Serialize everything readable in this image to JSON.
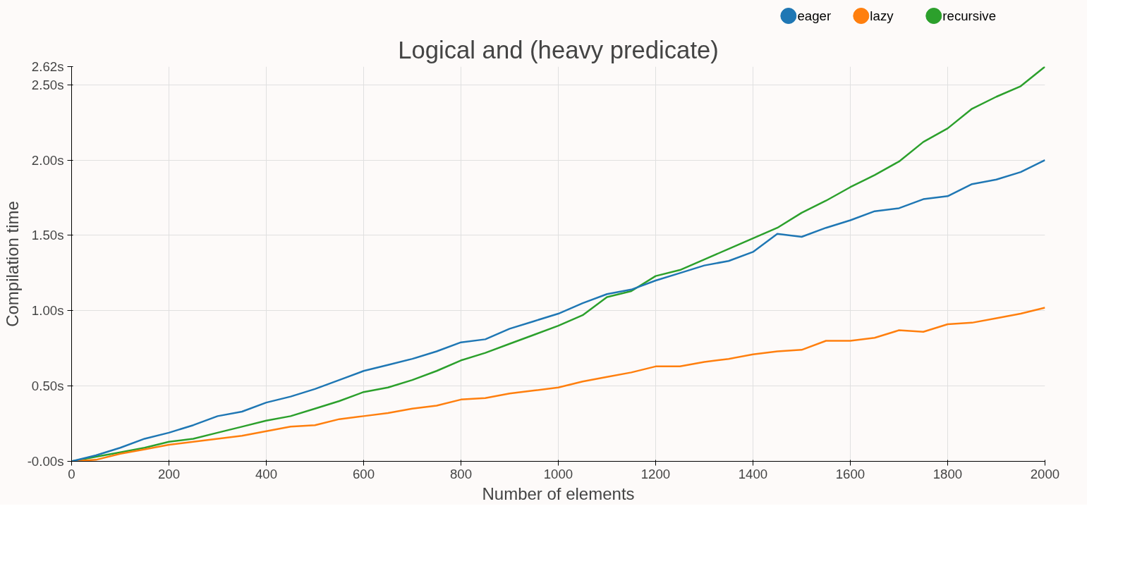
{
  "chart_data": {
    "type": "line",
    "title": "Logical and (heavy predicate)",
    "xlabel": "Number of elements",
    "ylabel": "Compilation time",
    "x": [
      0,
      50,
      100,
      150,
      200,
      250,
      300,
      350,
      400,
      450,
      500,
      550,
      600,
      650,
      700,
      750,
      800,
      850,
      900,
      950,
      1000,
      1050,
      1100,
      1150,
      1200,
      1250,
      1300,
      1350,
      1400,
      1450,
      1500,
      1550,
      1600,
      1650,
      1700,
      1750,
      1800,
      1850,
      1900,
      1950,
      2000
    ],
    "series": [
      {
        "name": "eager",
        "color": "#1f77b4",
        "values": [
          0,
          0.04,
          0.09,
          0.15,
          0.19,
          0.24,
          0.3,
          0.33,
          0.39,
          0.43,
          0.48,
          0.54,
          0.6,
          0.64,
          0.68,
          0.73,
          0.79,
          0.81,
          0.88,
          0.93,
          0.98,
          1.05,
          1.11,
          1.14,
          1.2,
          1.25,
          1.3,
          1.33,
          1.39,
          1.51,
          1.49,
          1.55,
          1.6,
          1.66,
          1.68,
          1.74,
          1.76,
          1.84,
          1.87,
          1.92,
          2.0
        ]
      },
      {
        "name": "lazy",
        "color": "#ff7f0e",
        "values": [
          0,
          0.01,
          0.05,
          0.08,
          0.11,
          0.13,
          0.15,
          0.17,
          0.2,
          0.23,
          0.24,
          0.28,
          0.3,
          0.32,
          0.35,
          0.37,
          0.41,
          0.42,
          0.45,
          0.47,
          0.49,
          0.53,
          0.56,
          0.59,
          0.63,
          0.63,
          0.66,
          0.68,
          0.71,
          0.73,
          0.74,
          0.8,
          0.8,
          0.82,
          0.87,
          0.86,
          0.91,
          0.92,
          0.95,
          0.98,
          1.02
        ]
      },
      {
        "name": "recursive",
        "color": "#2ca02c",
        "values": [
          0,
          0.03,
          0.06,
          0.09,
          0.13,
          0.15,
          0.19,
          0.23,
          0.27,
          0.3,
          0.35,
          0.4,
          0.46,
          0.49,
          0.54,
          0.6,
          0.67,
          0.72,
          0.78,
          0.84,
          0.9,
          0.97,
          1.09,
          1.13,
          1.23,
          1.27,
          1.34,
          1.41,
          1.48,
          1.55,
          1.65,
          1.73,
          1.82,
          1.9,
          1.99,
          2.12,
          2.21,
          2.34,
          2.42,
          2.49,
          2.62
        ]
      }
    ],
    "xlim": [
      0,
      2000
    ],
    "xticks": [
      0,
      200,
      400,
      600,
      800,
      1000,
      1200,
      1400,
      1600,
      1800,
      2000
    ],
    "ylim": [
      0,
      2.62
    ],
    "yticks": [
      {
        "value": 0,
        "label": "-0.00s"
      },
      {
        "value": 0.5,
        "label": "0.50s"
      },
      {
        "value": 1.0,
        "label": "1.00s"
      },
      {
        "value": 1.5,
        "label": "1.50s"
      },
      {
        "value": 2.0,
        "label": "2.00s"
      },
      {
        "value": 2.5,
        "label": "2.50s"
      },
      {
        "value": 2.62,
        "label": "2.62s"
      }
    ],
    "grid": true,
    "legend": "top right",
    "marker": "none",
    "line_style": "solid"
  }
}
